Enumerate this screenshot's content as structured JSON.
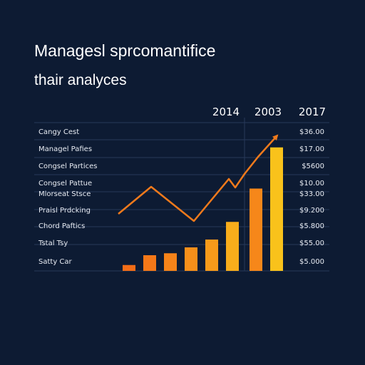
{
  "header": {
    "title_line1": "Managesl sprcomantifice",
    "title_line2": "thair analyces"
  },
  "colors": {
    "background": "#0d1b33",
    "gridline": "#27385a",
    "line": "#f07a1c",
    "bar_start": "#f36d17",
    "bar_end": "#f9c21b"
  },
  "chart_data": {
    "type": "bar",
    "years": [
      "2014",
      "2003",
      "2017"
    ],
    "rows": [
      {
        "label": "Cangy Cest",
        "value": "$36.00"
      },
      {
        "label": "Managel Pafies",
        "value": "$17.00"
      },
      {
        "label": "Congsel Partices",
        "value": "$5600"
      },
      {
        "label": "Congsel Pattue",
        "value": "$10.00"
      },
      {
        "label": "Mlorseat Stsce",
        "value": "$33.00"
      },
      {
        "label": "Praisl Prdcking",
        "value": "$9.200"
      },
      {
        "label": "Chord Paftics",
        "value": "$5.800"
      },
      {
        "label": "Tstal Tsy",
        "value": "$55.00"
      },
      {
        "label": "Satty Car",
        "value": "$5.000"
      }
    ],
    "series": [
      {
        "type": "bar",
        "values": [
          3,
          8,
          9,
          12,
          16,
          25,
          42,
          63
        ]
      },
      {
        "type": "line",
        "values": [
          33,
          48,
          30,
          48,
          38,
          46,
          73,
          79
        ]
      }
    ],
    "ylim": [
      0,
      80
    ]
  }
}
